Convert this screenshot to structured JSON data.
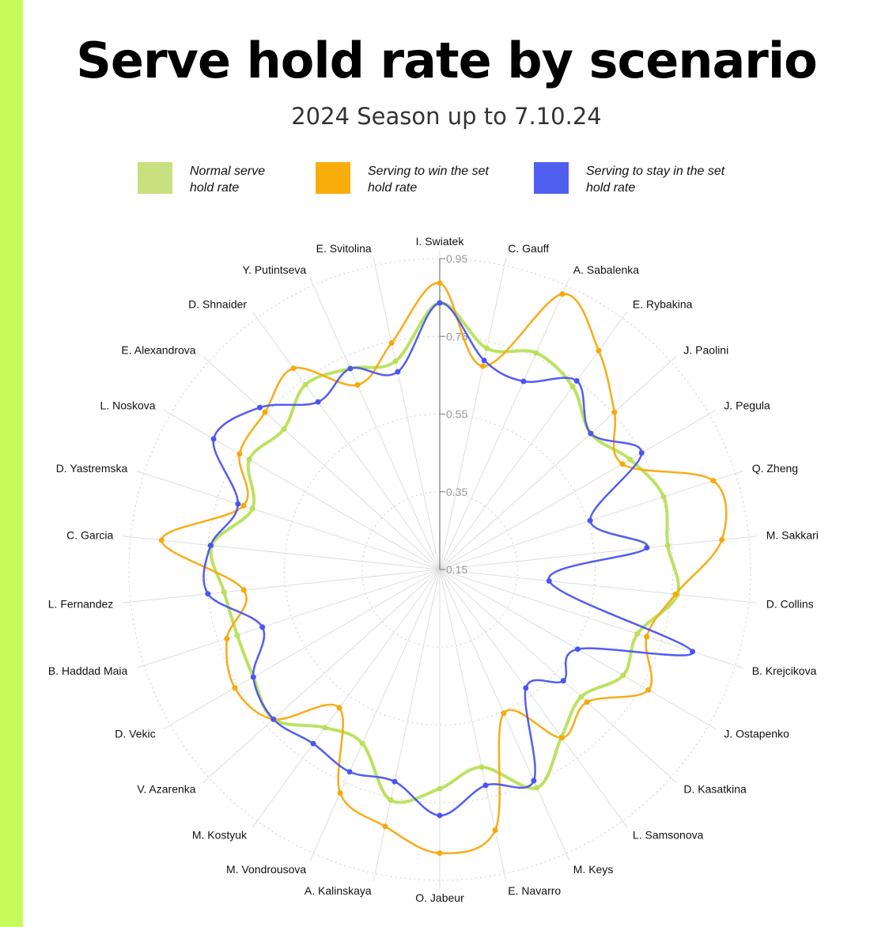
{
  "title": "Serve hold rate by scenario",
  "subtitle": "2024 Season up to 7.10.24",
  "legend": [
    {
      "label": "Normal serve\nhold rate",
      "color": "#c9e07e"
    },
    {
      "label": "Serving to win the set\nhold rate",
      "color": "#f9ad0b"
    },
    {
      "label": "Serving to stay in the set\nhold rate",
      "color": "#4f5ff0"
    }
  ],
  "chart_data": {
    "type": "radar",
    "title": "Serve hold rate by scenario",
    "subtitle": "2024 Season up to 7.10.24",
    "rlim": [
      0.15,
      0.95
    ],
    "ticks": [
      "0.15",
      "0.35",
      "0.55",
      "0.75",
      "0.95"
    ],
    "tick_values": [
      0.15,
      0.35,
      0.55,
      0.75,
      0.95
    ],
    "grid": true,
    "legend_position": "top",
    "categories": [
      "I. Swiatek",
      "C. Gauff",
      "A. Sabalenka",
      "E. Rybakina",
      "J. Paolini",
      "J. Pegula",
      "Q. Zheng",
      "M. Sakkari",
      "D. Collins",
      "B. Krejcikova",
      "J. Ostapenko",
      "D. Kasatkina",
      "L. Samsonova",
      "M. Keys",
      "E. Navarro",
      "O. Jabeur",
      "A. Kalinskaya",
      "M. Vondrousova",
      "M. Kostyuk",
      "V. Azarenka",
      "D. Vekic",
      "B. Haddad Maia",
      "L. Fernandez",
      "C. Garcia",
      "D. Yastremska",
      "L. Noskova",
      "E. Alexandrova",
      "D. Shnaider",
      "Y. Putintseva",
      "E. Svitolina"
    ],
    "series": [
      {
        "name": "Normal serve hold rate",
        "color": "#b8e05a",
        "values": [
          0.836,
          0.732,
          0.76,
          0.732,
          0.673,
          0.716,
          0.756,
          0.74,
          0.765,
          0.685,
          0.695,
          0.64,
          0.683,
          0.765,
          0.67,
          0.714,
          0.757,
          0.64,
          0.653,
          0.726,
          0.704,
          0.698,
          0.708,
          0.74,
          0.657,
          0.716,
          0.69,
          0.738,
          0.716,
          0.698
        ]
      },
      {
        "name": "Serving to win the set hold rate",
        "color": "#f9a80b",
        "values": [
          0.887,
          0.685,
          0.926,
          0.846,
          0.755,
          0.693,
          0.89,
          0.88,
          0.76,
          0.71,
          0.77,
          0.66,
          0.685,
          0.555,
          0.836,
          0.88,
          0.826,
          0.78,
          0.59,
          0.726,
          0.759,
          0.726,
          0.657,
          0.87,
          0.681,
          0.745,
          0.755,
          0.79,
          0.67,
          0.746
        ]
      },
      {
        "name": "Serving to stay in the set hold rate",
        "color": "#4a55f0",
        "values": [
          0.836,
          0.7,
          0.68,
          0.75,
          0.673,
          0.75,
          0.557,
          0.686,
          0.433,
          0.834,
          0.56,
          0.578,
          0.527,
          0.745,
          0.718,
          0.783,
          0.708,
          0.72,
          0.704,
          0.726,
          0.704,
          0.63,
          0.75,
          0.743,
          0.696,
          0.822,
          0.773,
          0.683,
          0.716,
          0.67
        ]
      }
    ]
  }
}
